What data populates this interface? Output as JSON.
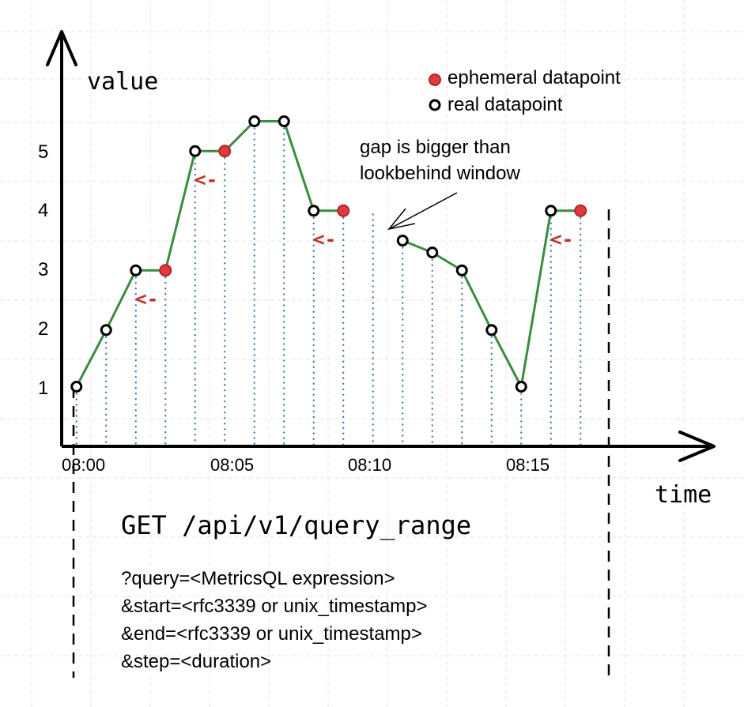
{
  "chart_data": {
    "type": "line",
    "ylabel": "value",
    "xlabel": "time",
    "y_ticks": [
      "1",
      "2",
      "3",
      "4",
      "5"
    ],
    "x_ticks": [
      "08:00",
      "08:05",
      "08:10",
      "08:15"
    ],
    "ylim": [
      0,
      5.5
    ],
    "legend": {
      "placement": "top-right",
      "ephemeral_label": "ephemeral datapoint",
      "real_label": "real datapoint"
    },
    "annotation": [
      "gap is bigger than",
      "lookbehind window"
    ],
    "lookbehind_arrow": "<-",
    "colors": {
      "line": "#3a8c3f",
      "ephemeral": "#e0393e",
      "real": "#000000",
      "step": "#2e6da4",
      "arrow": "#c0302b"
    },
    "points": [
      {
        "x": 0.5,
        "y": 1.0,
        "kind": "real"
      },
      {
        "x": 1.5,
        "y": 1.95,
        "kind": "real"
      },
      {
        "x": 2.5,
        "y": 2.95,
        "kind": "real"
      },
      {
        "x": 3.5,
        "y": 2.95,
        "kind": "ephemeral"
      },
      {
        "x": 4.5,
        "y": 4.95,
        "kind": "real"
      },
      {
        "x": 5.5,
        "y": 4.95,
        "kind": "ephemeral"
      },
      {
        "x": 6.5,
        "y": 5.45,
        "kind": "real"
      },
      {
        "x": 7.5,
        "y": 5.45,
        "kind": "real"
      },
      {
        "x": 8.5,
        "y": 3.95,
        "kind": "real"
      },
      {
        "x": 9.5,
        "y": 3.95,
        "kind": "ephemeral"
      },
      {
        "x": 11.5,
        "y": 3.45,
        "kind": "real"
      },
      {
        "x": 12.5,
        "y": 3.25,
        "kind": "real"
      },
      {
        "x": 13.5,
        "y": 2.95,
        "kind": "real"
      },
      {
        "x": 14.5,
        "y": 1.95,
        "kind": "real"
      },
      {
        "x": 15.5,
        "y": 1.0,
        "kind": "real"
      },
      {
        "x": 16.5,
        "y": 3.95,
        "kind": "real"
      },
      {
        "x": 17.5,
        "y": 3.95,
        "kind": "ephemeral"
      }
    ],
    "segments": [
      [
        0,
        9
      ],
      [
        10,
        16
      ]
    ],
    "steps_x": [
      0.5,
      1.5,
      2.5,
      3.5,
      4.5,
      5.5,
      6.5,
      7.5,
      8.5,
      9.5,
      10.5,
      11.5,
      12.5,
      13.5,
      14.5,
      15.5,
      16.5,
      17.5
    ],
    "lookbehind_from": [
      3,
      5,
      9,
      16
    ]
  },
  "request": {
    "title": "GET /api/v1/query_range",
    "params": [
      "?query=<MetricsQL expression>",
      "&start=<rfc3339 or unix_timestamp>",
      "&end=<rfc3339 or unix_timestamp>",
      "&step=<duration>"
    ]
  }
}
